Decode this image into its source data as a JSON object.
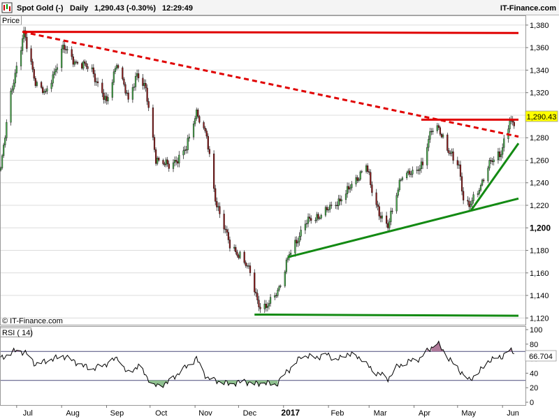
{
  "header": {
    "instrument": "Spot Gold (-)",
    "period": "Daily",
    "quote": "1,290.43 (-0.30%)",
    "time": "12:29:49",
    "brand": "IT-Finance.com"
  },
  "price_panel": {
    "label": "Price",
    "watermark": "© IT-Finance.com",
    "last_value_box": "1,290.43",
    "yticks": [
      "1,380",
      "1,360",
      "1,340",
      "1,320",
      "1,300",
      "1,280",
      "1,260",
      "1,240",
      "1,220",
      "1,200",
      "1,180",
      "1,160",
      "1,140",
      "1,120"
    ]
  },
  "rsi_panel": {
    "label": "RSI ( 14)",
    "last_value_box": "66.704",
    "yticks": [
      "100",
      "80",
      "60",
      "40",
      "20",
      "0"
    ]
  },
  "xaxis": {
    "labels": [
      "Jul",
      "Aug",
      "Sep",
      "Oct",
      "Nov",
      "Dec",
      "2017",
      "Feb",
      "Mar",
      "Apr",
      "May",
      "Jun"
    ]
  },
  "colors": {
    "up_candle": "#4caf50",
    "down_candle": "#8b1a1a",
    "resistance": "#e00000",
    "support": "#138a13",
    "rsi_line": "#000000",
    "rsi_overbought_fill": "#b07a9a",
    "rsi_oversold_fill": "#8fc08f",
    "last_value_bg": "#ffff00"
  },
  "chart_data": [
    {
      "type": "candlestick",
      "title": "Spot Gold (-)",
      "ylabel": "Price",
      "ylim": [
        1114,
        1388
      ],
      "x_range": [
        "2016-06-20",
        "2017-06-09"
      ],
      "price_path": [
        [
          "2016-06-20",
          1252
        ],
        [
          "2016-06-27",
          1320
        ],
        [
          "2016-07-06",
          1372
        ],
        [
          "2016-07-14",
          1330
        ],
        [
          "2016-07-21",
          1318
        ],
        [
          "2016-08-02",
          1360
        ],
        [
          "2016-08-10",
          1348
        ],
        [
          "2016-08-22",
          1340
        ],
        [
          "2016-09-01",
          1310
        ],
        [
          "2016-09-08",
          1348
        ],
        [
          "2016-09-16",
          1312
        ],
        [
          "2016-09-22",
          1338
        ],
        [
          "2016-09-28",
          1322
        ],
        [
          "2016-10-05",
          1262
        ],
        [
          "2016-10-14",
          1254
        ],
        [
          "2016-10-26",
          1270
        ],
        [
          "2016-11-02",
          1304
        ],
        [
          "2016-11-09",
          1280
        ],
        [
          "2016-11-15",
          1226
        ],
        [
          "2016-11-25",
          1184
        ],
        [
          "2016-12-02",
          1176
        ],
        [
          "2016-12-09",
          1160
        ],
        [
          "2016-12-15",
          1132
        ],
        [
          "2016-12-20",
          1128
        ],
        [
          "2016-12-30",
          1150
        ],
        [
          "2017-01-05",
          1176
        ],
        [
          "2017-01-16",
          1204
        ],
        [
          "2017-01-24",
          1210
        ],
        [
          "2017-02-03",
          1218
        ],
        [
          "2017-02-14",
          1232
        ],
        [
          "2017-02-27",
          1256
        ],
        [
          "2017-03-03",
          1232
        ],
        [
          "2017-03-08",
          1214
        ],
        [
          "2017-03-14",
          1200
        ],
        [
          "2017-03-23",
          1246
        ],
        [
          "2017-03-31",
          1248
        ],
        [
          "2017-04-07",
          1258
        ],
        [
          "2017-04-13",
          1286
        ],
        [
          "2017-04-18",
          1290
        ],
        [
          "2017-04-25",
          1266
        ],
        [
          "2017-05-02",
          1256
        ],
        [
          "2017-05-05",
          1226
        ],
        [
          "2017-05-09",
          1218
        ],
        [
          "2017-05-16",
          1236
        ],
        [
          "2017-05-23",
          1256
        ],
        [
          "2017-05-31",
          1268
        ],
        [
          "2017-06-06",
          1294
        ],
        [
          "2017-06-09",
          1290.43
        ]
      ],
      "trendlines": [
        {
          "kind": "resistance",
          "style": "solid",
          "points": [
            [
              "2016-07-05",
              1374
            ],
            [
              "2017-06-12",
              1373
            ]
          ]
        },
        {
          "kind": "resistance",
          "style": "dashed",
          "points": [
            [
              "2016-07-05",
              1374
            ],
            [
              "2017-06-12",
              1281
            ]
          ]
        },
        {
          "kind": "resistance",
          "style": "solid",
          "points": [
            [
              "2017-04-06",
              1296
            ],
            [
              "2017-06-12",
              1296
            ]
          ]
        },
        {
          "kind": "support",
          "style": "solid",
          "points": [
            [
              "2016-12-12",
              1123
            ],
            [
              "2017-06-12",
              1122
            ]
          ]
        },
        {
          "kind": "support",
          "style": "solid",
          "points": [
            [
              "2017-01-04",
              1174
            ],
            [
              "2017-06-12",
              1226
            ]
          ]
        },
        {
          "kind": "support",
          "style": "solid",
          "points": [
            [
              "2017-05-10",
              1215
            ],
            [
              "2017-06-12",
              1275
            ]
          ]
        }
      ]
    },
    {
      "type": "line",
      "title": "RSI ( 14)",
      "ylim": [
        0,
        100
      ],
      "reference_lines": [
        70,
        30
      ],
      "values": [
        [
          "2016-06-20",
          60
        ],
        [
          "2016-07-01",
          72
        ],
        [
          "2016-07-08",
          67
        ],
        [
          "2016-07-14",
          52
        ],
        [
          "2016-08-02",
          64
        ],
        [
          "2016-08-08",
          58
        ],
        [
          "2016-08-16",
          50
        ],
        [
          "2016-08-23",
          46
        ],
        [
          "2016-09-02",
          54
        ],
        [
          "2016-09-09",
          62
        ],
        [
          "2016-09-15",
          40
        ],
        [
          "2016-09-23",
          50
        ],
        [
          "2016-09-27",
          40
        ],
        [
          "2016-10-04",
          22
        ],
        [
          "2016-10-13",
          27
        ],
        [
          "2016-10-24",
          46
        ],
        [
          "2016-11-02",
          60
        ],
        [
          "2016-11-09",
          34
        ],
        [
          "2016-11-15",
          30
        ],
        [
          "2016-11-25",
          25
        ],
        [
          "2016-12-05",
          29
        ],
        [
          "2016-12-12",
          25
        ],
        [
          "2016-12-19",
          27
        ],
        [
          "2016-12-27",
          24
        ],
        [
          "2017-01-03",
          42
        ],
        [
          "2017-01-09",
          52
        ],
        [
          "2017-01-13",
          64
        ],
        [
          "2017-01-25",
          62
        ],
        [
          "2017-01-31",
          66
        ],
        [
          "2017-02-07",
          58
        ],
        [
          "2017-02-14",
          67
        ],
        [
          "2017-02-24",
          60
        ],
        [
          "2017-03-03",
          44
        ],
        [
          "2017-03-09",
          38
        ],
        [
          "2017-03-14",
          32
        ],
        [
          "2017-03-20",
          48
        ],
        [
          "2017-03-28",
          56
        ],
        [
          "2017-04-05",
          60
        ],
        [
          "2017-04-11",
          72
        ],
        [
          "2017-04-17",
          82
        ],
        [
          "2017-04-25",
          60
        ],
        [
          "2017-05-05",
          38
        ],
        [
          "2017-05-09",
          30
        ],
        [
          "2017-05-17",
          44
        ],
        [
          "2017-05-23",
          58
        ],
        [
          "2017-05-31",
          62
        ],
        [
          "2017-06-06",
          72
        ],
        [
          "2017-06-09",
          66.704
        ]
      ]
    }
  ]
}
